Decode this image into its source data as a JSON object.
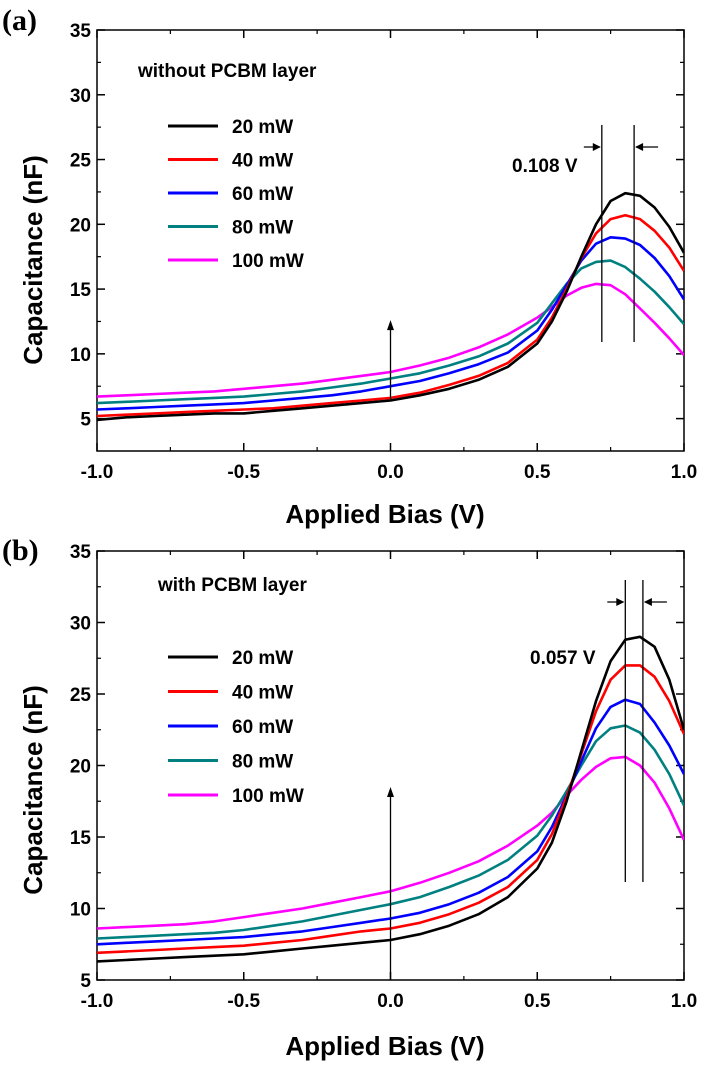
{
  "chart_data": [
    {
      "panel_label": "(a)",
      "type": "line",
      "annotation": "without PCBM layer",
      "xlabel": "Applied Bias (V)",
      "ylabel": "Capacitance (nF)",
      "xlim": [
        -1.0,
        1.0
      ],
      "ylim": [
        2.5,
        35
      ],
      "xticks": [
        -1.0,
        -0.5,
        0.0,
        0.5,
        1.0
      ],
      "xtick_labels": [
        "-1.0",
        "-0.5",
        "0.0",
        "0.5",
        "1.0"
      ],
      "yticks": [
        5,
        10,
        15,
        20,
        25,
        30,
        35
      ],
      "ytick_labels": [
        "5",
        "10",
        "15",
        "20",
        "25",
        "30",
        "35"
      ],
      "peak_shift_label": "0.108 V",
      "peak_shift_lines_x": [
        0.72,
        0.83
      ],
      "arrow_x": 0.0,
      "arrow_y_range": [
        6.5,
        12.6
      ],
      "legend_position": "left",
      "x": [
        -1.0,
        -0.9,
        -0.8,
        -0.7,
        -0.6,
        -0.5,
        -0.4,
        -0.3,
        -0.2,
        -0.1,
        0.0,
        0.1,
        0.2,
        0.3,
        0.4,
        0.5,
        0.55,
        0.6,
        0.65,
        0.7,
        0.75,
        0.8,
        0.85,
        0.9,
        0.95,
        1.0
      ],
      "series": [
        {
          "name": "20 mW",
          "color": "#000000",
          "values": [
            4.9,
            5.1,
            5.2,
            5.3,
            5.4,
            5.4,
            5.6,
            5.8,
            6.0,
            6.2,
            6.4,
            6.8,
            7.3,
            8.0,
            9.0,
            10.8,
            12.5,
            14.8,
            17.5,
            20.0,
            21.8,
            22.4,
            22.2,
            21.3,
            19.8,
            17.8
          ]
        },
        {
          "name": "40 mW",
          "color": "#ff0000",
          "values": [
            5.2,
            5.3,
            5.4,
            5.5,
            5.6,
            5.7,
            5.8,
            6.0,
            6.2,
            6.4,
            6.6,
            7.0,
            7.6,
            8.3,
            9.3,
            11.1,
            12.8,
            15.0,
            17.4,
            19.3,
            20.4,
            20.7,
            20.4,
            19.5,
            18.2,
            16.4
          ]
        },
        {
          "name": "60 mW",
          "color": "#0000ff",
          "values": [
            5.7,
            5.8,
            5.9,
            6.0,
            6.1,
            6.2,
            6.4,
            6.6,
            6.8,
            7.1,
            7.5,
            7.9,
            8.5,
            9.2,
            10.1,
            11.8,
            13.4,
            15.3,
            17.2,
            18.5,
            19.0,
            18.9,
            18.4,
            17.4,
            16.0,
            14.2
          ]
        },
        {
          "name": "80 mW",
          "color": "#008080",
          "values": [
            6.2,
            6.3,
            6.4,
            6.5,
            6.6,
            6.7,
            6.9,
            7.1,
            7.4,
            7.7,
            8.1,
            8.5,
            9.1,
            9.8,
            10.8,
            12.4,
            13.9,
            15.4,
            16.6,
            17.1,
            17.2,
            16.7,
            15.8,
            14.8,
            13.6,
            12.3
          ]
        },
        {
          "name": "100 mW",
          "color": "#ff00ff",
          "values": [
            6.7,
            6.8,
            6.9,
            7.0,
            7.1,
            7.3,
            7.5,
            7.7,
            8.0,
            8.3,
            8.6,
            9.1,
            9.7,
            10.5,
            11.5,
            12.8,
            13.6,
            14.5,
            15.1,
            15.4,
            15.3,
            14.6,
            13.5,
            12.4,
            11.2,
            9.9
          ]
        }
      ]
    },
    {
      "panel_label": "(b)",
      "type": "line",
      "annotation": "with PCBM layer",
      "xlabel": "Applied Bias (V)",
      "ylabel": "Capacitance (nF)",
      "xlim": [
        -1.0,
        1.0
      ],
      "ylim": [
        5,
        35
      ],
      "xticks": [
        -1.0,
        -0.5,
        0.0,
        0.5,
        1.0
      ],
      "xtick_labels": [
        "-1.0",
        "-0.5",
        "0.0",
        "0.5",
        "1.0"
      ],
      "yticks": [
        5,
        10,
        15,
        20,
        25,
        30,
        35
      ],
      "ytick_labels": [
        "5",
        "10",
        "15",
        "20",
        "25",
        "30",
        "35"
      ],
      "peak_shift_label": "0.057 V",
      "peak_shift_lines_x": [
        0.8,
        0.86
      ],
      "arrow_x": 0.0,
      "arrow_y_range": [
        5.0,
        18.5
      ],
      "legend_position": "left",
      "x": [
        -1.0,
        -0.9,
        -0.8,
        -0.7,
        -0.6,
        -0.5,
        -0.4,
        -0.3,
        -0.2,
        -0.1,
        0.0,
        0.1,
        0.2,
        0.3,
        0.4,
        0.5,
        0.55,
        0.6,
        0.65,
        0.7,
        0.75,
        0.8,
        0.85,
        0.9,
        0.95,
        1.0
      ],
      "series": [
        {
          "name": "20 mW",
          "color": "#000000",
          "values": [
            6.3,
            6.4,
            6.5,
            6.6,
            6.7,
            6.8,
            7.0,
            7.2,
            7.4,
            7.6,
            7.8,
            8.2,
            8.8,
            9.6,
            10.8,
            12.8,
            14.6,
            17.5,
            21.0,
            24.5,
            27.3,
            28.8,
            29.0,
            28.3,
            26.0,
            22.5
          ]
        },
        {
          "name": "40 mW",
          "color": "#ff0000",
          "values": [
            6.9,
            7.0,
            7.1,
            7.2,
            7.3,
            7.4,
            7.6,
            7.8,
            8.1,
            8.4,
            8.6,
            9.0,
            9.6,
            10.4,
            11.5,
            13.4,
            15.2,
            17.8,
            20.8,
            23.8,
            26.0,
            27.0,
            27.0,
            26.2,
            24.5,
            22.2
          ]
        },
        {
          "name": "60 mW",
          "color": "#0000ff",
          "values": [
            7.5,
            7.6,
            7.7,
            7.8,
            7.9,
            8.0,
            8.2,
            8.4,
            8.7,
            9.0,
            9.3,
            9.7,
            10.3,
            11.1,
            12.2,
            14.0,
            15.7,
            17.9,
            20.3,
            22.6,
            24.1,
            24.6,
            24.3,
            23.0,
            21.4,
            19.4
          ]
        },
        {
          "name": "80 mW",
          "color": "#008080",
          "values": [
            7.9,
            8.0,
            8.1,
            8.2,
            8.3,
            8.5,
            8.8,
            9.1,
            9.5,
            9.9,
            10.3,
            10.8,
            11.5,
            12.3,
            13.4,
            15.1,
            16.5,
            18.2,
            20.0,
            21.7,
            22.6,
            22.8,
            22.3,
            21.1,
            19.4,
            17.2
          ]
        },
        {
          "name": "100 mW",
          "color": "#ff00ff",
          "values": [
            8.6,
            8.7,
            8.8,
            8.9,
            9.1,
            9.4,
            9.7,
            10.0,
            10.4,
            10.8,
            11.2,
            11.8,
            12.5,
            13.3,
            14.4,
            15.8,
            16.7,
            17.9,
            19.0,
            19.9,
            20.5,
            20.6,
            20.0,
            18.8,
            17.0,
            14.8
          ]
        }
      ]
    }
  ]
}
